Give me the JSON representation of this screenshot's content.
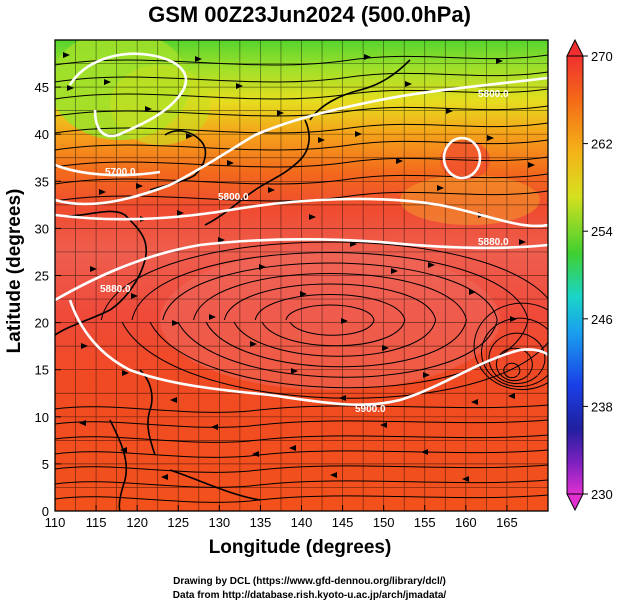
{
  "title": "GSM 00Z23Jun2024 (500.0hPa)",
  "xlabel": "Longitude (degrees)",
  "ylabel": "Latitude  (degrees)",
  "credits": [
    "Drawing by DCL (https://www.gfd-dennou.org/library/dcl/)",
    "Data from http://database.rish.kyoto-u.ac.jp/arch/jmadata/"
  ],
  "x_ticks": [
    "110",
    "115",
    "120",
    "125",
    "130",
    "135",
    "140",
    "145",
    "150",
    "155",
    "160",
    "165"
  ],
  "y_ticks": [
    "0",
    "5",
    "10",
    "15",
    "20",
    "25",
    "30",
    "35",
    "40",
    "45"
  ],
  "colorbar_labels": [
    "270",
    "262",
    "254",
    "246",
    "238",
    "230"
  ],
  "contour_labels": [
    "5700.0",
    "5800.0",
    "5800.0",
    "5880.0",
    "5880.0",
    "5900.0"
  ],
  "colors": {
    "warm_core": "#ef6352",
    "red": "#ee3030",
    "orange": "#f36a1c",
    "yellow": "#d8dd1f",
    "green": "#4ad22c",
    "cyan": "#1ad4dc",
    "blue": "#1a55ea",
    "navy": "#20209a",
    "magenta": "#d01fd0",
    "contour": "#ffffff",
    "coast": "#000000"
  }
}
